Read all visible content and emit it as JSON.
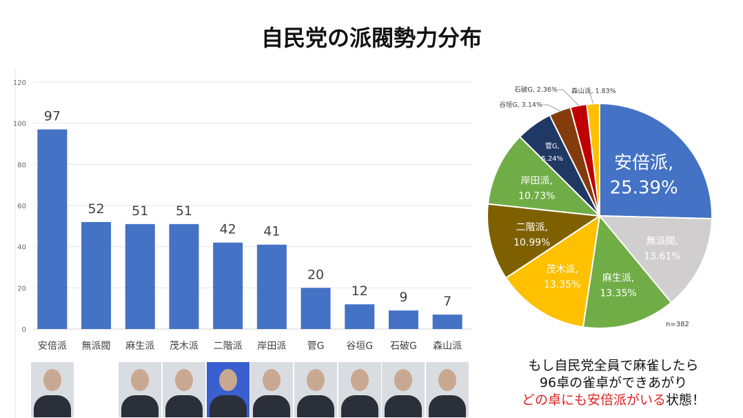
{
  "title": "自民党の派閥勢力分布",
  "chart_data": [
    {
      "type": "bar",
      "categories": [
        "安倍派",
        "無派閥",
        "麻生派",
        "茂木派",
        "二階派",
        "岸田派",
        "菅G",
        "谷垣G",
        "石破G",
        "森山派"
      ],
      "values": [
        97,
        52,
        51,
        51,
        42,
        41,
        20,
        12,
        9,
        7
      ],
      "ylim": [
        0,
        120
      ],
      "yticks": [
        0,
        20,
        40,
        60,
        80,
        100,
        120
      ],
      "grid": true,
      "color": "#4472C4"
    },
    {
      "type": "pie",
      "labels": [
        "安倍派",
        "無派閥",
        "麻生派",
        "茂木派",
        "二階派",
        "岸田派",
        "菅G",
        "谷垣G",
        "石破G",
        "森山派"
      ],
      "values": [
        25.39,
        13.61,
        13.35,
        13.35,
        10.99,
        10.73,
        5.24,
        3.14,
        2.36,
        1.83
      ],
      "value_labels": [
        "25.39%",
        "13.61%",
        "13.35%",
        "13.35%",
        "10.99%",
        "10.73%",
        "5.24%",
        "3.14%",
        "2.36%",
        "1.83%"
      ],
      "colors": [
        "#4472C4",
        "#D0CECE",
        "#70AD47",
        "#FFC000",
        "#7F6000",
        "#70AD47",
        "#203864",
        "#843C0C",
        "#C00000",
        "#FFC000"
      ],
      "note": "n=382"
    }
  ],
  "caption": {
    "line1": "もし自民党全員で麻雀したら",
    "line2": "96卓の雀卓ができあがり",
    "line3_red": "どの卓にも安倍派がいる",
    "line3_black": "状態！"
  }
}
